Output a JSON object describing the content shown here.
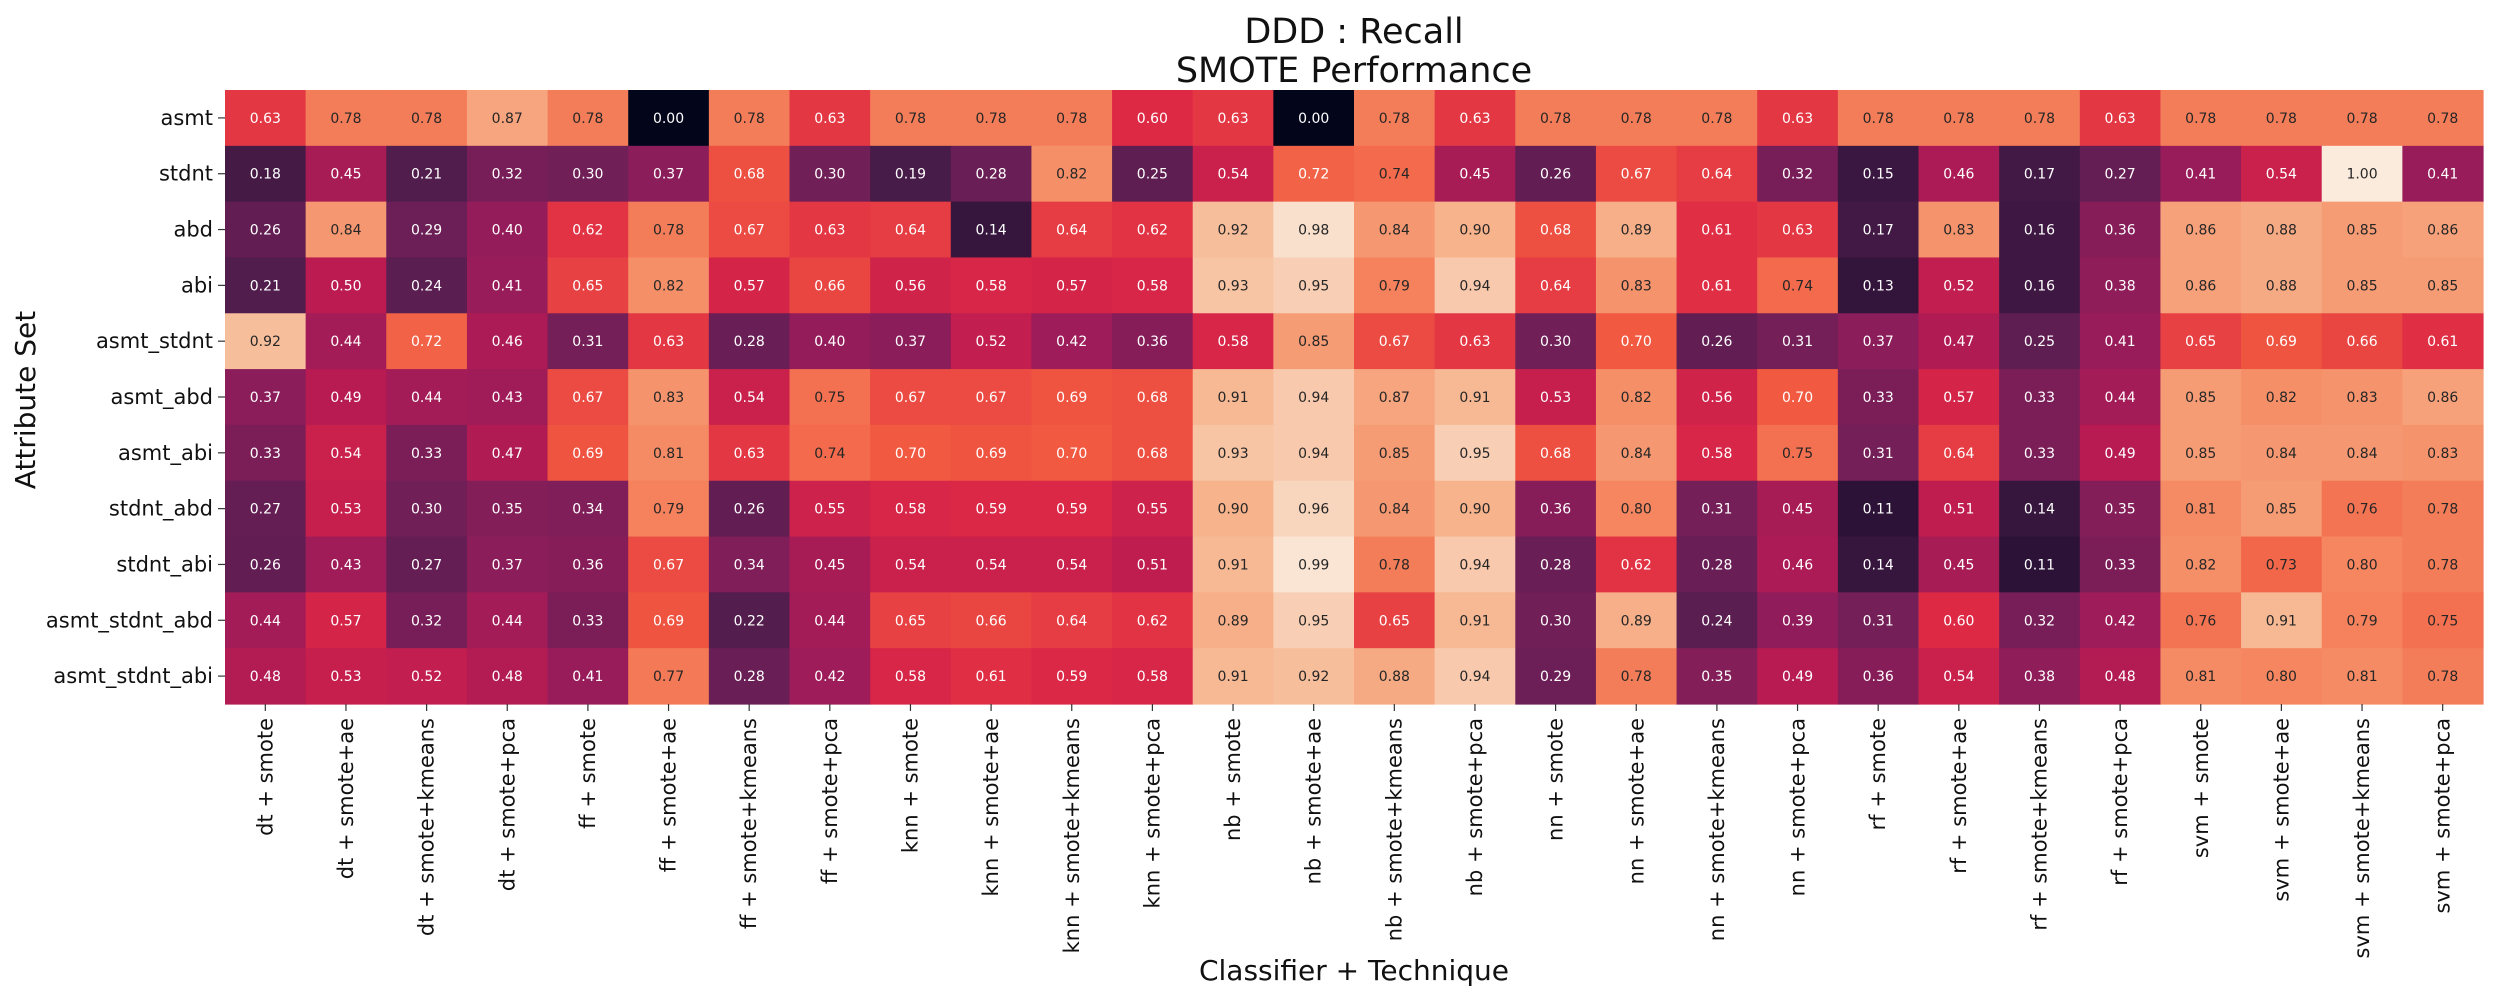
{
  "chart_data": {
    "type": "heatmap",
    "title": "DDD : Recall",
    "subtitle": "SMOTE Performance",
    "xlabel": "Classifier + Technique",
    "ylabel": "Attribute Set",
    "colormap": "rocket",
    "color_range": [
      0,
      1
    ],
    "colorbar": false,
    "grid": false,
    "x_categories": [
      "dt + smote",
      "dt + smote+ae",
      "dt + smote+kmeans",
      "dt + smote+pca",
      "ff + smote",
      "ff + smote+ae",
      "ff + smote+kmeans",
      "ff + smote+pca",
      "knn + smote",
      "knn + smote+ae",
      "knn + smote+kmeans",
      "knn + smote+pca",
      "nb + smote",
      "nb + smote+ae",
      "nb + smote+kmeans",
      "nb + smote+pca",
      "nn + smote",
      "nn + smote+ae",
      "nn + smote+kmeans",
      "nn + smote+pca",
      "rf + smote",
      "rf + smote+ae",
      "rf + smote+kmeans",
      "rf + smote+pca",
      "svm + smote",
      "svm + smote+ae",
      "svm + smote+kmeans",
      "svm + smote+pca"
    ],
    "y_categories": [
      "asmt",
      "stdnt",
      "abd",
      "abi",
      "asmt_stdnt",
      "asmt_abd",
      "asmt_abi",
      "stdnt_abd",
      "stdnt_abi",
      "asmt_stdnt_abd",
      "asmt_stdnt_abi"
    ],
    "values": [
      [
        0.63,
        0.78,
        0.78,
        0.87,
        0.78,
        0.0,
        0.78,
        0.63,
        0.78,
        0.78,
        0.78,
        0.6,
        0.63,
        0.0,
        0.78,
        0.63,
        0.78,
        0.78,
        0.78,
        0.63,
        0.78,
        0.78,
        0.78,
        0.63,
        0.78,
        0.78,
        0.78,
        0.78
      ],
      [
        0.18,
        0.45,
        0.21,
        0.32,
        0.3,
        0.37,
        0.68,
        0.3,
        0.19,
        0.28,
        0.82,
        0.25,
        0.54,
        0.72,
        0.74,
        0.45,
        0.26,
        0.67,
        0.64,
        0.32,
        0.15,
        0.46,
        0.17,
        0.27,
        0.41,
        0.54,
        1.0,
        0.41
      ],
      [
        0.26,
        0.84,
        0.29,
        0.4,
        0.62,
        0.78,
        0.67,
        0.63,
        0.64,
        0.14,
        0.64,
        0.62,
        0.92,
        0.98,
        0.84,
        0.9,
        0.68,
        0.89,
        0.61,
        0.63,
        0.17,
        0.83,
        0.16,
        0.36,
        0.86,
        0.88,
        0.85,
        0.86
      ],
      [
        0.21,
        0.5,
        0.24,
        0.41,
        0.65,
        0.82,
        0.57,
        0.66,
        0.56,
        0.58,
        0.57,
        0.58,
        0.93,
        0.95,
        0.79,
        0.94,
        0.64,
        0.83,
        0.61,
        0.74,
        0.13,
        0.52,
        0.16,
        0.38,
        0.86,
        0.88,
        0.85,
        0.85
      ],
      [
        0.92,
        0.44,
        0.72,
        0.46,
        0.31,
        0.63,
        0.28,
        0.4,
        0.37,
        0.52,
        0.42,
        0.36,
        0.58,
        0.85,
        0.67,
        0.63,
        0.3,
        0.7,
        0.26,
        0.31,
        0.37,
        0.47,
        0.25,
        0.41,
        0.65,
        0.69,
        0.66,
        0.61
      ],
      [
        0.37,
        0.49,
        0.44,
        0.43,
        0.67,
        0.83,
        0.54,
        0.75,
        0.67,
        0.67,
        0.69,
        0.68,
        0.91,
        0.94,
        0.87,
        0.91,
        0.53,
        0.82,
        0.56,
        0.7,
        0.33,
        0.57,
        0.33,
        0.44,
        0.85,
        0.82,
        0.83,
        0.86
      ],
      [
        0.33,
        0.54,
        0.33,
        0.47,
        0.69,
        0.81,
        0.63,
        0.74,
        0.7,
        0.69,
        0.7,
        0.68,
        0.93,
        0.94,
        0.85,
        0.95,
        0.68,
        0.84,
        0.58,
        0.75,
        0.31,
        0.64,
        0.33,
        0.49,
        0.85,
        0.84,
        0.84,
        0.83
      ],
      [
        0.27,
        0.53,
        0.3,
        0.35,
        0.34,
        0.79,
        0.26,
        0.55,
        0.58,
        0.59,
        0.59,
        0.55,
        0.9,
        0.96,
        0.84,
        0.9,
        0.36,
        0.8,
        0.31,
        0.45,
        0.11,
        0.51,
        0.14,
        0.35,
        0.81,
        0.85,
        0.76,
        0.78
      ],
      [
        0.26,
        0.43,
        0.27,
        0.37,
        0.36,
        0.67,
        0.34,
        0.45,
        0.54,
        0.54,
        0.54,
        0.51,
        0.91,
        0.99,
        0.78,
        0.94,
        0.28,
        0.62,
        0.28,
        0.46,
        0.14,
        0.45,
        0.11,
        0.33,
        0.82,
        0.73,
        0.8,
        0.78
      ],
      [
        0.44,
        0.57,
        0.32,
        0.44,
        0.33,
        0.69,
        0.22,
        0.44,
        0.65,
        0.66,
        0.64,
        0.62,
        0.89,
        0.95,
        0.65,
        0.91,
        0.3,
        0.89,
        0.24,
        0.39,
        0.31,
        0.6,
        0.32,
        0.42,
        0.76,
        0.91,
        0.79,
        0.75
      ],
      [
        0.48,
        0.53,
        0.52,
        0.48,
        0.41,
        0.77,
        0.28,
        0.42,
        0.58,
        0.61,
        0.59,
        0.58,
        0.91,
        0.92,
        0.88,
        0.94,
        0.29,
        0.78,
        0.35,
        0.49,
        0.36,
        0.54,
        0.38,
        0.48,
        0.81,
        0.8,
        0.81,
        0.78
      ]
    ]
  }
}
